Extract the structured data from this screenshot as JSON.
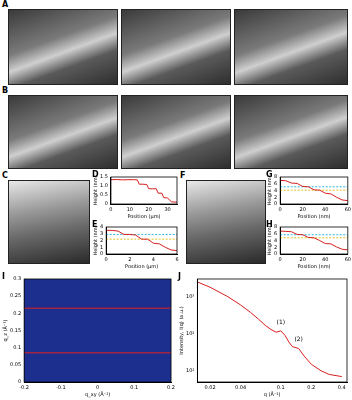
{
  "panels": [
    {
      "label": "A"
    },
    {
      "label": "B"
    },
    {
      "label": "C"
    },
    {
      "label": "F"
    }
  ],
  "chart_data": [
    {
      "panel": "D",
      "type": "line",
      "x_label": "Position (μm)",
      "y_label": "Height (nm)",
      "x": [
        0,
        3,
        6,
        9,
        12,
        14,
        15,
        17,
        19,
        20,
        22,
        24,
        25,
        27,
        28,
        30,
        32,
        35
      ],
      "series": [
        {
          "color": "#d62020",
          "values": [
            1.35,
            1.36,
            1.34,
            1.35,
            1.35,
            1.34,
            1.1,
            1.1,
            1.08,
            0.85,
            0.84,
            0.85,
            0.6,
            0.6,
            0.35,
            0.34,
            0.12,
            0.1
          ]
        }
      ],
      "xlim": [
        0,
        35
      ],
      "xticks": [
        0,
        10,
        20,
        30
      ],
      "ylim": [
        0,
        1.5
      ],
      "yticks": [
        0,
        0.5,
        {
          "value": 1,
          "label": "1.0"
        },
        1.5
      ]
    },
    {
      "panel": "E",
      "type": "line",
      "x_label": "Position (μm)",
      "y_label": "Height (nm)",
      "x": [
        0,
        0.5,
        1,
        1.5,
        2,
        2.5,
        3,
        3.5,
        4,
        4.5,
        5,
        5.5,
        6
      ],
      "series": [
        {
          "color": "#d62020",
          "values": [
            3.5,
            3.5,
            3.4,
            2.9,
            2.9,
            2.8,
            2.2,
            2.2,
            1.6,
            1.5,
            1.0,
            0.6,
            0.5
          ]
        },
        {
          "color": "#2ab7d6",
          "line_style": "dashed",
          "values": [
            2.9,
            2.9,
            2.9,
            2.9,
            2.9,
            2.9,
            2.9,
            2.9,
            2.9,
            2.9,
            2.9,
            2.9,
            2.9
          ]
        },
        {
          "color": "#e0c020",
          "line_style": "dashed",
          "values": [
            2.2,
            2.2,
            2.2,
            2.2,
            2.2,
            2.2,
            2.2,
            2.2,
            2.2,
            2.2,
            2.2,
            2.2,
            2.2
          ]
        }
      ],
      "xlim": [
        0,
        6
      ],
      "xticks": [
        0,
        2,
        4,
        6
      ],
      "ylim": [
        0,
        4
      ],
      "yticks": [
        0,
        1,
        2,
        3,
        4
      ]
    },
    {
      "panel": "G",
      "type": "line",
      "x_label": "Position (nm)",
      "y_label": "Height (nm)",
      "x": [
        0,
        5,
        10,
        15,
        20,
        25,
        30,
        35,
        40,
        45,
        50,
        55,
        60
      ],
      "series": [
        {
          "color": "#d62020",
          "values": [
            7,
            6.9,
            6.2,
            6.1,
            5.2,
            5.1,
            4.2,
            4.1,
            3.2,
            3.0,
            2.0,
            1.2,
            1.0
          ]
        },
        {
          "color": "#2ab7d6",
          "line_style": "dashed",
          "values": [
            5.1,
            5.1,
            5.1,
            5.1,
            5.1,
            5.1,
            5.1,
            5.1,
            5.1,
            5.1,
            5.1,
            5.1,
            5.1
          ]
        },
        {
          "color": "#e0c020",
          "line_style": "dashed",
          "values": [
            4.1,
            4.1,
            4.1,
            4.1,
            4.1,
            4.1,
            4.1,
            4.1,
            4.1,
            4.1,
            4.1,
            4.1,
            4.1
          ]
        }
      ],
      "xlim": [
        0,
        60
      ],
      "xticks": [
        0,
        20,
        40,
        60
      ],
      "ylim": [
        0,
        8
      ],
      "yticks": [
        0,
        2,
        4,
        6,
        8
      ]
    },
    {
      "panel": "H",
      "type": "line",
      "x_label": "Position (nm)",
      "y_label": "Height (nm)",
      "x": [
        0,
        5,
        10,
        15,
        20,
        25,
        30,
        35,
        40,
        45,
        50,
        55,
        60
      ],
      "series": [
        {
          "color": "#d62020",
          "values": [
            6.8,
            6.7,
            6.6,
            5.8,
            5.7,
            4.9,
            4.8,
            4.0,
            3.1,
            3.0,
            2.1,
            1.4,
            1.2
          ]
        },
        {
          "color": "#2ab7d6",
          "line_style": "dashed",
          "values": [
            5.7,
            5.7,
            5.7,
            5.7,
            5.7,
            5.7,
            5.7,
            5.7,
            5.7,
            5.7,
            5.7,
            5.7,
            5.7
          ]
        },
        {
          "color": "#e0c020",
          "line_style": "dashed",
          "values": [
            4.8,
            4.8,
            4.8,
            4.8,
            4.8,
            4.8,
            4.8,
            4.8,
            4.8,
            4.8,
            4.8,
            4.8,
            4.8
          ]
        }
      ],
      "xlim": [
        0,
        60
      ],
      "xticks": [
        0,
        20,
        40,
        60
      ],
      "ylim": [
        0,
        8
      ],
      "yticks": [
        0,
        2,
        4,
        6,
        8
      ]
    },
    {
      "panel": "I",
      "type": "line",
      "x_label": "q_xy (Å⁻¹)",
      "y_label": "q_z (Å⁻¹)",
      "x": [
        -0.2,
        0.2
      ],
      "series": [
        {
          "color": "#e02020",
          "values": [
            0.085,
            0.085
          ]
        },
        {
          "color": "#e02020",
          "values": [
            0.215,
            0.215
          ]
        }
      ],
      "xlim": [
        -0.2,
        0.2
      ],
      "xticks": [
        -0.2,
        -0.1,
        0,
        0.1,
        0.2
      ],
      "ylim": [
        0,
        0.3
      ],
      "yticks": [
        0,
        0.05,
        0.1,
        0.15,
        0.2,
        0.25,
        0.3
      ]
    },
    {
      "panel": "J",
      "type": "line",
      "log": true,
      "x_label": "q (Å⁻¹)",
      "y_label": "Intensity, I(q) (a.u.)",
      "x": [
        0.015,
        0.02,
        0.03,
        0.04,
        0.05,
        0.06,
        0.07,
        0.08,
        0.09,
        0.1,
        0.11,
        0.12,
        0.13,
        0.15,
        0.17,
        0.2,
        0.25,
        0.3,
        0.4
      ],
      "series": [
        {
          "color": "#d62020",
          "values": [
            2500,
            1800,
            1000,
            600,
            380,
            250,
            170,
            130,
            110,
            120,
            90,
            60,
            45,
            40,
            25,
            15,
            10,
            8,
            7
          ]
        }
      ],
      "annotations": [
        {
          "text": "(1)",
          "x": 0.1,
          "y": 170
        },
        {
          "text": "(2)",
          "x": 0.15,
          "y": 60
        }
      ],
      "xlim": [
        0.015,
        0.45
      ],
      "xticks": [
        0.02,
        0.04,
        0.1,
        0.2,
        0.4
      ],
      "ylim": [
        5,
        3000
      ],
      "yticks": [
        {
          "value": 10,
          "label": "10¹"
        },
        {
          "value": 100,
          "label": "10²"
        },
        {
          "value": 1000,
          "label": "10³"
        }
      ]
    }
  ]
}
